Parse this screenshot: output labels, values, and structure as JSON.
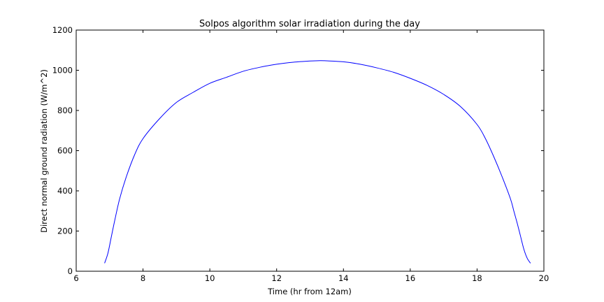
{
  "chart_data": {
    "type": "line",
    "title": "Solpos algorithm solar irradiation during the day",
    "xlabel": "Time (hr from 12am)",
    "ylabel": "Direct normal ground radiation (W/m^2)",
    "xlim": [
      6,
      20
    ],
    "ylim": [
      0,
      1200
    ],
    "xticks": [
      6,
      8,
      10,
      12,
      14,
      16,
      18,
      20
    ],
    "yticks": [
      0,
      200,
      400,
      600,
      800,
      1000,
      1200
    ],
    "grid": false,
    "legend": "none",
    "series": [
      {
        "color": "#0000ff",
        "x": [
          6.85,
          6.95,
          7.05,
          7.15,
          7.3,
          7.5,
          7.75,
          8.0,
          8.5,
          9.0,
          9.5,
          10.0,
          10.5,
          11.0,
          11.5,
          12.0,
          12.5,
          13.0,
          13.3,
          13.5,
          14.0,
          14.5,
          15.0,
          15.5,
          16.0,
          16.5,
          17.0,
          17.5,
          18.0,
          18.25,
          18.5,
          18.75,
          19.0,
          19.1,
          19.2,
          19.3,
          19.4,
          19.5,
          19.6
        ],
        "y": [
          40,
          90,
          170,
          250,
          360,
          470,
          580,
          660,
          760,
          840,
          890,
          935,
          965,
          995,
          1015,
          1030,
          1040,
          1046,
          1048,
          1047,
          1042,
          1030,
          1012,
          990,
          960,
          925,
          880,
          820,
          730,
          660,
          570,
          470,
          360,
          300,
          240,
          175,
          110,
          65,
          40
        ]
      }
    ]
  }
}
